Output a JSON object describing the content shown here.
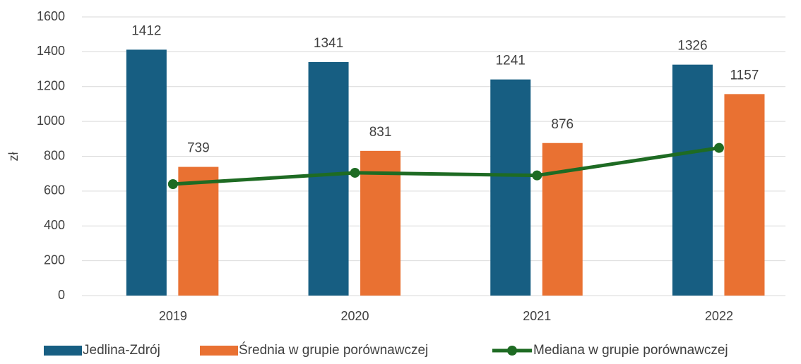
{
  "chart_data": {
    "type": "bar",
    "y_label": "zł",
    "categories": [
      "2019",
      "2020",
      "2021",
      "2022"
    ],
    "series": [
      {
        "name": "Jedlina-Zdrój",
        "color": "#175e82",
        "values": [
          1412,
          1341,
          1241,
          1326
        ]
      },
      {
        "name": "Średnia w grupie porównawczej",
        "color": "#e97132",
        "values": [
          739,
          831,
          876,
          1157
        ]
      },
      {
        "name": "Mediana w grupie porównawczej",
        "color": "#1e6b23",
        "type": "line",
        "values": [
          640,
          705,
          690,
          848
        ]
      }
    ],
    "ylim": [
      0,
      1600
    ],
    "yticks": [
      0,
      200,
      400,
      600,
      800,
      1000,
      1200,
      1400,
      1600
    ],
    "grid": true,
    "legend": "bottom"
  }
}
